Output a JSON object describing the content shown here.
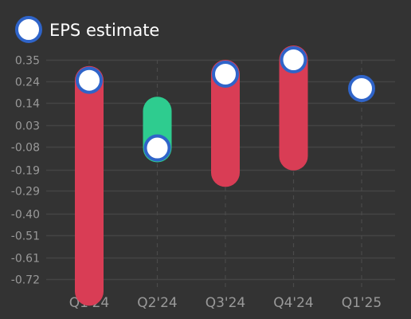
{
  "colors": {
    "background": "#333333",
    "grid": "#444444",
    "tick_text": "#999999",
    "legend_text": "#ffffff",
    "miss": "#d93d55",
    "beat": "#2ecc8f",
    "marker_fill": "#ffffff",
    "marker_stroke": "#2f64c9"
  },
  "chart_data": {
    "type": "range-dot",
    "title": "",
    "xlabel": "",
    "ylabel": "",
    "legend": {
      "label": "EPS estimate",
      "placement": "top-left"
    },
    "categories": [
      "Q1'24",
      "Q2'24",
      "Q3'24",
      "Q4'24",
      "Q1'25"
    ],
    "y_ticks": [
      "0.35",
      "0.24",
      "0.14",
      "0.03",
      "-0.08",
      "-0.19",
      "-0.29",
      "-0.40",
      "-0.51",
      "-0.61",
      "-0.72"
    ],
    "y_tick_values": [
      0.35,
      0.245,
      0.14,
      0.03,
      -0.075,
      -0.185,
      -0.29,
      -0.4,
      -0.505,
      -0.615,
      -0.72
    ],
    "ylim": [
      -0.72,
      0.35
    ],
    "grid": true,
    "estimate": [
      0.25,
      -0.08,
      0.28,
      0.35,
      0.21
    ],
    "actual": [
      -0.78,
      0.1,
      -0.2,
      -0.12,
      null
    ],
    "status": [
      "miss",
      "beat",
      "miss",
      "miss",
      "pending"
    ]
  }
}
